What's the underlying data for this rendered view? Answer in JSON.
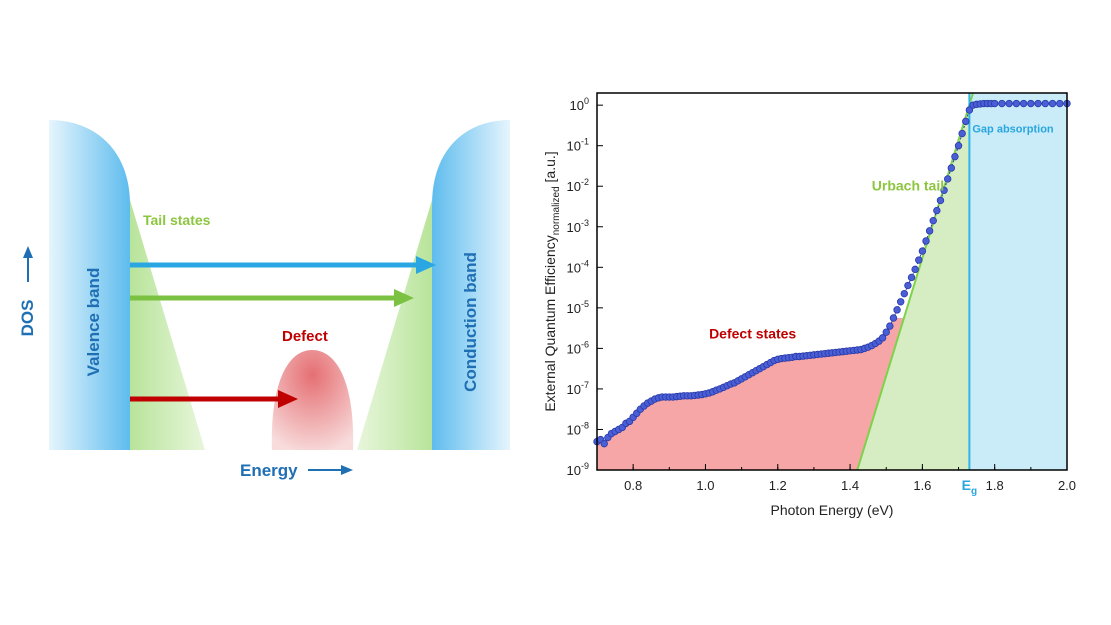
{
  "diagram": {
    "valence_band": "Valence band",
    "conduction_band": "Conduction band",
    "tail_states": "Tail states",
    "defect": "Defect",
    "energy": "Energy",
    "dos": "DOS",
    "colors": {
      "band": "#6ec4f0",
      "tail": "#c6eab0",
      "defect": "#e8868a",
      "arrow_gap": "#2aa7e3",
      "arrow_tail": "#7cc242",
      "arrow_defect": "#c00000",
      "axis_label": "#1f6fb4",
      "tail_label": "#8cc63f",
      "defect_label": "#c00000"
    }
  },
  "chart_data": {
    "type": "scatter",
    "title": "",
    "xlabel": "Photon Energy (eV)",
    "ylabel_main": "External Quantum Efficiency",
    "ylabel_sub": "normalized",
    "ylabel_unit": " [a.u.]",
    "xlim": [
      0.7,
      2.0
    ],
    "ylim_log10": [
      -9,
      0.3
    ],
    "yscale": "log",
    "x_ticks": [
      {
        "v": 0.8,
        "label": "0.8"
      },
      {
        "v": 1.0,
        "label": "1.0"
      },
      {
        "v": 1.2,
        "label": "1.2"
      },
      {
        "v": 1.4,
        "label": "1.4"
      },
      {
        "v": 1.6,
        "label": "1.6"
      },
      {
        "v": 1.8,
        "label": "1.8"
      },
      {
        "v": 2.0,
        "label": "2.0"
      }
    ],
    "y_ticks": [
      {
        "e": 0,
        "label": "0"
      },
      {
        "e": -1,
        "label": "-1"
      },
      {
        "e": -2,
        "label": "-2"
      },
      {
        "e": -3,
        "label": "-3"
      },
      {
        "e": -4,
        "label": "-4"
      },
      {
        "e": -5,
        "label": "-5"
      },
      {
        "e": -6,
        "label": "-6"
      },
      {
        "e": -7,
        "label": "-7"
      },
      {
        "e": -8,
        "label": "-8"
      },
      {
        "e": -9,
        "label": "-9"
      }
    ],
    "y_tick_base": "10",
    "eg_label_main": "E",
    "eg_label_sub": "g",
    "eg_value": 1.73,
    "annotations": {
      "defect_states": "Defect states",
      "urbach_tail": "Urbach tail",
      "gap_absorption": "Gap absorption"
    },
    "urbach_line": [
      [
        1.42,
        -9
      ],
      [
        1.74,
        0.3
      ]
    ],
    "colors": {
      "points": "#4a5fd6",
      "point_edge": "#2a3aa8",
      "defect_fill": "#f6a6a6",
      "urbach_fill": "#d6ecc2",
      "gap_fill": "#c9ecf8",
      "urbach_line": "#7cd34a",
      "eg_line": "#2fb5e8",
      "defect_text": "#c00000",
      "urbach_text": "#8cc63f",
      "gap_text": "#29a6df"
    },
    "series": [
      {
        "x": [
          0.7,
          0.71,
          0.72,
          0.73,
          0.74,
          0.75,
          0.76,
          0.77,
          0.78,
          0.79,
          0.8,
          0.81,
          0.82,
          0.83,
          0.84,
          0.85,
          0.86,
          0.87,
          0.88,
          0.89,
          0.9,
          0.91,
          0.92,
          0.93,
          0.94,
          0.95,
          0.96,
          0.97,
          0.98,
          0.99,
          1.0,
          1.01,
          1.02,
          1.03,
          1.04,
          1.05,
          1.06,
          1.07,
          1.08,
          1.09,
          1.1,
          1.11,
          1.12,
          1.13,
          1.14,
          1.15,
          1.16,
          1.17,
          1.18,
          1.19,
          1.2,
          1.21,
          1.22,
          1.23,
          1.24,
          1.25,
          1.26,
          1.27,
          1.28,
          1.29,
          1.3,
          1.31,
          1.32,
          1.33,
          1.34,
          1.35,
          1.36,
          1.37,
          1.38,
          1.39,
          1.4,
          1.41,
          1.42,
          1.43,
          1.44,
          1.45,
          1.46,
          1.47,
          1.48,
          1.49,
          1.5,
          1.51,
          1.52,
          1.53,
          1.54,
          1.55,
          1.56,
          1.57,
          1.58,
          1.59,
          1.6,
          1.61,
          1.62,
          1.63,
          1.64,
          1.65,
          1.66,
          1.67,
          1.68,
          1.69,
          1.7,
          1.71,
          1.72,
          1.73,
          1.74,
          1.75,
          1.76,
          1.77,
          1.78,
          1.79,
          1.8,
          1.82,
          1.84,
          1.86,
          1.88,
          1.9,
          1.92,
          1.94,
          1.96,
          1.98,
          2.0
        ],
        "log10_y": [
          -8.3,
          -8.25,
          -8.35,
          -8.2,
          -8.1,
          -8.05,
          -8.0,
          -7.95,
          -7.85,
          -7.8,
          -7.7,
          -7.6,
          -7.5,
          -7.42,
          -7.35,
          -7.3,
          -7.25,
          -7.22,
          -7.2,
          -7.2,
          -7.2,
          -7.2,
          -7.19,
          -7.18,
          -7.17,
          -7.17,
          -7.17,
          -7.16,
          -7.15,
          -7.14,
          -7.12,
          -7.1,
          -7.07,
          -7.03,
          -7.0,
          -6.96,
          -6.92,
          -6.88,
          -6.85,
          -6.8,
          -6.75,
          -6.7,
          -6.65,
          -6.6,
          -6.55,
          -6.5,
          -6.45,
          -6.4,
          -6.35,
          -6.3,
          -6.27,
          -6.25,
          -6.24,
          -6.23,
          -6.22,
          -6.2,
          -6.2,
          -6.19,
          -6.18,
          -6.17,
          -6.16,
          -6.15,
          -6.14,
          -6.13,
          -6.12,
          -6.11,
          -6.1,
          -6.09,
          -6.08,
          -6.07,
          -6.06,
          -6.05,
          -6.04,
          -6.03,
          -6.0,
          -5.97,
          -5.93,
          -5.88,
          -5.82,
          -5.74,
          -5.6,
          -5.45,
          -5.25,
          -5.05,
          -4.85,
          -4.65,
          -4.45,
          -4.25,
          -4.05,
          -3.82,
          -3.6,
          -3.35,
          -3.1,
          -2.85,
          -2.6,
          -2.35,
          -2.1,
          -1.82,
          -1.55,
          -1.27,
          -1.0,
          -0.7,
          -0.4,
          -0.12,
          0.0,
          0.02,
          0.03,
          0.04,
          0.04,
          0.04,
          0.04,
          0.04,
          0.04,
          0.04,
          0.04,
          0.04,
          0.04,
          0.04,
          0.04,
          0.04,
          0.04
        ]
      }
    ]
  }
}
